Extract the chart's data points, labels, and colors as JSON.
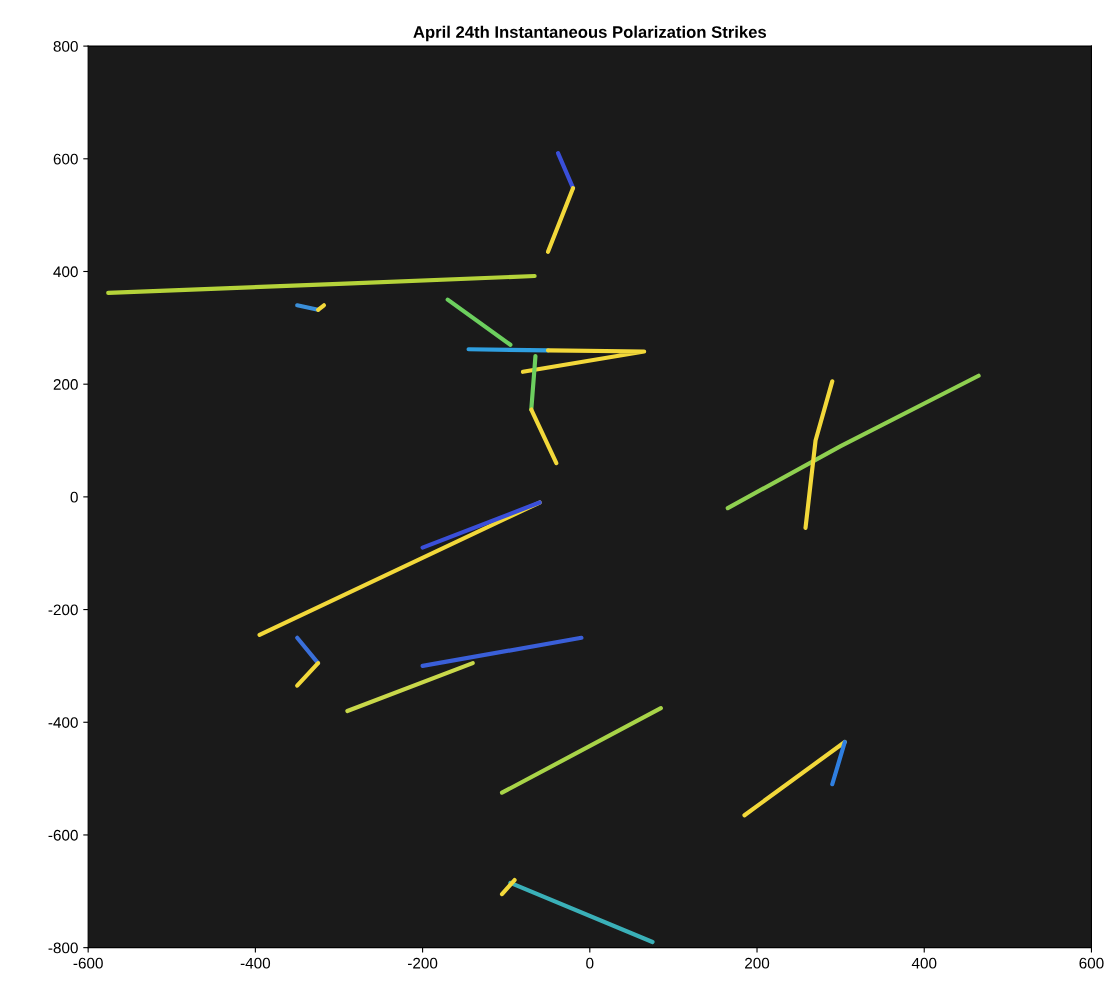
{
  "chart_data": {
    "type": "line",
    "title": "April 24th Instantaneous Polarization Strikes",
    "xlim": [
      -600,
      600
    ],
    "xticks": [
      -600,
      -400,
      -200,
      0,
      200,
      400,
      600
    ],
    "ylim": [
      -800,
      800
    ],
    "yticks": [
      -800,
      -600,
      -400,
      -200,
      0,
      200,
      400,
      600,
      800
    ],
    "grid": false,
    "series": [
      {
        "color": "#b5d33a",
        "x": [
          -66,
          -300,
          -576
        ],
        "values": [
          392,
          378,
          362
        ]
      },
      {
        "color": "#3b8fd9",
        "x": [
          -350,
          -325
        ],
        "values": [
          340,
          332
        ]
      },
      {
        "color": "#f2d83a",
        "x": [
          -325,
          -318
        ],
        "values": [
          332,
          340
        ]
      },
      {
        "color": "#3a4fd9",
        "x": [
          -38,
          -20
        ],
        "values": [
          610,
          548
        ]
      },
      {
        "color": "#f2d83a",
        "x": [
          -20,
          -50
        ],
        "values": [
          548,
          435
        ]
      },
      {
        "color": "#6ccf5e",
        "x": [
          -170,
          -95
        ],
        "values": [
          350,
          270
        ]
      },
      {
        "color": "#2f9fe0",
        "x": [
          -145,
          -50
        ],
        "values": [
          262,
          260
        ]
      },
      {
        "color": "#f2d83a",
        "x": [
          -50,
          65,
          -80
        ],
        "values": [
          260,
          258,
          222
        ]
      },
      {
        "color": "#6ccf5e",
        "x": [
          -65,
          -70
        ],
        "values": [
          250,
          155
        ]
      },
      {
        "color": "#f2d83a",
        "x": [
          -70,
          -40
        ],
        "values": [
          155,
          60
        ]
      },
      {
        "color": "#8fd050",
        "x": [
          165,
          300,
          465
        ],
        "values": [
          -20,
          90,
          215
        ]
      },
      {
        "color": "#f2d83a",
        "x": [
          258,
          270,
          290
        ],
        "values": [
          -55,
          100,
          205
        ]
      },
      {
        "color": "#f2d83a",
        "x": [
          -60,
          -395
        ],
        "values": [
          -10,
          -245
        ]
      },
      {
        "color": "#3a4fd9",
        "x": [
          -200,
          -60
        ],
        "values": [
          -90,
          -10
        ]
      },
      {
        "color": "#3a6fd9",
        "x": [
          -350,
          -325
        ],
        "values": [
          -250,
          -295
        ]
      },
      {
        "color": "#f2d83a",
        "x": [
          -325,
          -350
        ],
        "values": [
          -295,
          -335
        ]
      },
      {
        "color": "#3a5fd9",
        "x": [
          -10,
          -200
        ],
        "values": [
          -250,
          -300
        ]
      },
      {
        "color": "#c9d84a",
        "x": [
          -140,
          -290
        ],
        "values": [
          -295,
          -380
        ]
      },
      {
        "color": "#a8d448",
        "x": [
          -105,
          85
        ],
        "values": [
          -525,
          -375
        ]
      },
      {
        "color": "#f2d83a",
        "x": [
          305,
          185
        ],
        "values": [
          -435,
          -565
        ]
      },
      {
        "color": "#2f7fe0",
        "x": [
          305,
          290
        ],
        "values": [
          -435,
          -510
        ]
      },
      {
        "color": "#3ab0b8",
        "x": [
          -95,
          75
        ],
        "values": [
          -685,
          -790
        ]
      },
      {
        "color": "#f2d83a",
        "x": [
          -90,
          -105
        ],
        "values": [
          -680,
          -705
        ]
      }
    ]
  }
}
